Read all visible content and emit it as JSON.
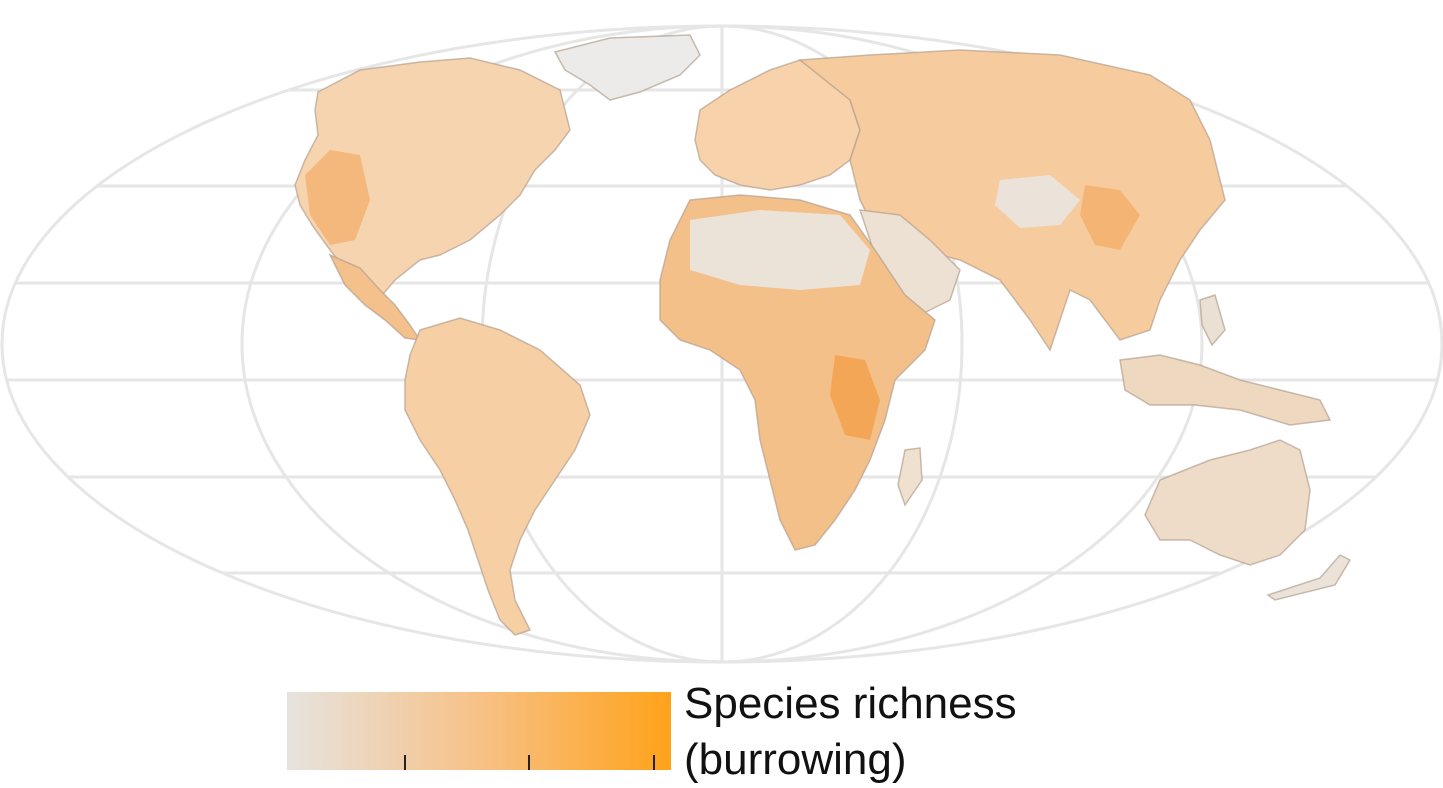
{
  "colors": {
    "low": "#e6e3df",
    "high": "#ffa21a",
    "graticule": "#e3e3e3",
    "borders": "#9a8f86"
  },
  "legend": {
    "title_line1": "Species richness",
    "title_line2": "(burrowing)",
    "tick_count": 3
  }
}
